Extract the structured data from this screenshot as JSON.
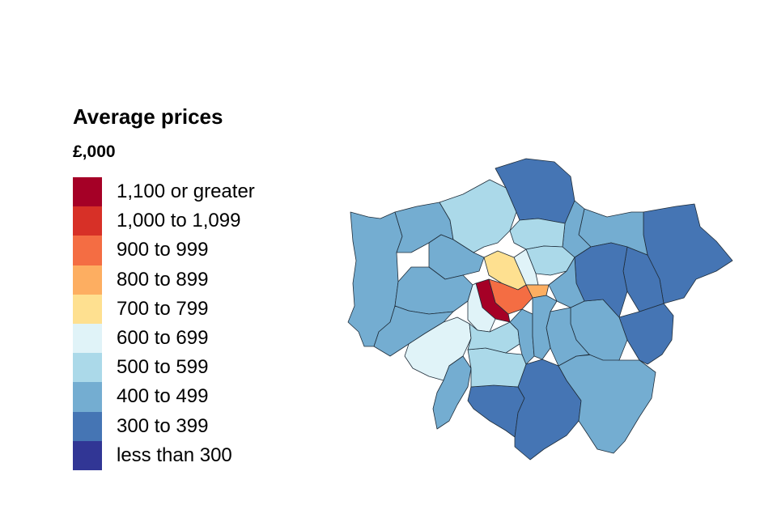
{
  "legend": {
    "title": "Average prices",
    "subtitle": "£,000",
    "items": [
      {
        "label": "1,100 or greater",
        "color": "#a50026"
      },
      {
        "label": "1,000 to 1,099",
        "color": "#d73027"
      },
      {
        "label": "900 to 999",
        "color": "#f46d43"
      },
      {
        "label": "800 to 899",
        "color": "#fdae61"
      },
      {
        "label": "700 to 799",
        "color": "#fee090"
      },
      {
        "label": "600 to 699",
        "color": "#e0f3f8"
      },
      {
        "label": "500 to 599",
        "color": "#abd9e9"
      },
      {
        "label": "400 to 499",
        "color": "#74add1"
      },
      {
        "label": "300 to 399",
        "color": "#4575b4"
      },
      {
        "label": "less than 300",
        "color": "#313695"
      }
    ]
  },
  "map": {
    "region": "London boroughs",
    "borough_bands": {
      "Kensington and Chelsea": "1,100 or greater",
      "Westminster": "900 to 999",
      "City of London": "800 to 899",
      "Camden": "700 to 799",
      "Islington": "600 to 699",
      "Hammersmith and Fulham": "600 to 699",
      "Richmond upon Thames": "600 to 699",
      "Barnet": "500 to 599",
      "Hackney": "500 to 599",
      "Haringey": "500 to 599",
      "Wandsworth": "500 to 599",
      "Southwark": "400 to 499",
      "Merton": "500 to 599",
      "Hillingdon": "400 to 499",
      "Harrow": "400 to 499",
      "Brent": "400 to 499",
      "Ealing": "400 to 499",
      "Hounslow": "400 to 499",
      "Kingston upon Thames": "400 to 499",
      "Lambeth": "400 to 499",
      "Tower Hamlets": "400 to 499",
      "Waltham Forest": "400 to 499",
      "Redbridge": "400 to 499",
      "Greenwich": "400 to 499",
      "Lewisham": "400 to 499",
      "Bromley": "400 to 499",
      "Enfield": "300 to 399",
      "Havering": "300 to 399",
      "Barking and Dagenham": "300 to 399",
      "Newham": "300 to 399",
      "Bexley": "300 to 399",
      "Croydon": "300 to 399",
      "Sutton": "300 to 399"
    }
  }
}
